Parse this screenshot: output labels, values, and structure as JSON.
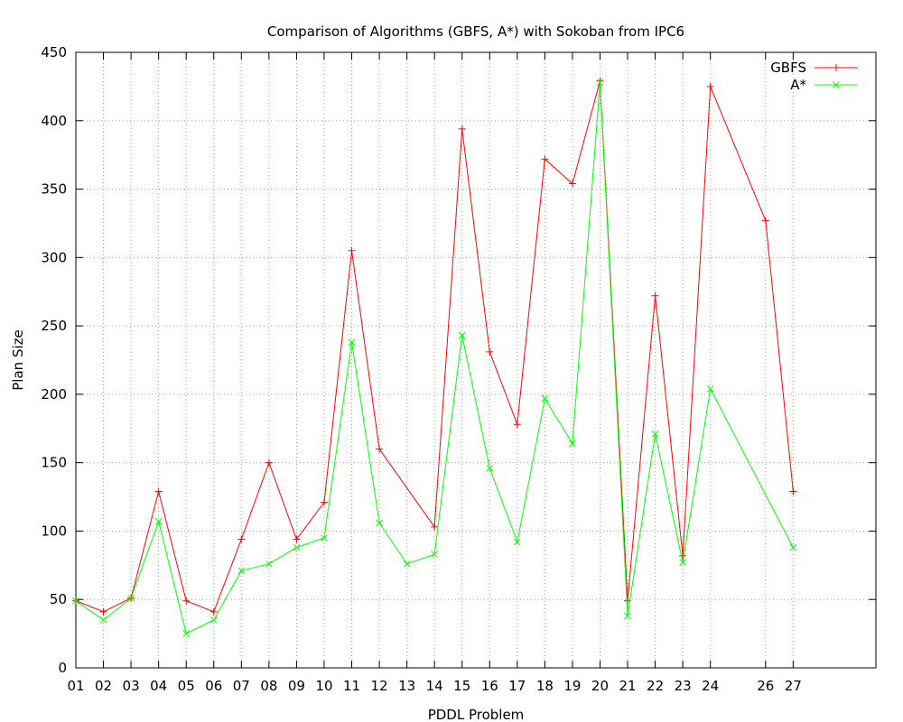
{
  "chart_data": {
    "type": "line",
    "title": "Comparison of Algorithms (GBFS, A*) with Sokoban from IPC6",
    "xlabel": "PDDL Problem",
    "ylabel": "Plan Size",
    "ylim": [
      0,
      450
    ],
    "yticks": [
      0,
      50,
      100,
      150,
      200,
      250,
      300,
      350,
      400,
      450
    ],
    "xlim": [
      1,
      30
    ],
    "xticks": [
      {
        "pos": 1,
        "label": "01"
      },
      {
        "pos": 2,
        "label": "02"
      },
      {
        "pos": 3,
        "label": "03"
      },
      {
        "pos": 4,
        "label": "04"
      },
      {
        "pos": 5,
        "label": "05"
      },
      {
        "pos": 6,
        "label": "06"
      },
      {
        "pos": 7,
        "label": "07"
      },
      {
        "pos": 8,
        "label": "08"
      },
      {
        "pos": 9,
        "label": "09"
      },
      {
        "pos": 10,
        "label": "10"
      },
      {
        "pos": 11,
        "label": "11"
      },
      {
        "pos": 12,
        "label": "12"
      },
      {
        "pos": 13,
        "label": "13"
      },
      {
        "pos": 14,
        "label": "14"
      },
      {
        "pos": 15,
        "label": "15"
      },
      {
        "pos": 16,
        "label": "16"
      },
      {
        "pos": 17,
        "label": "17"
      },
      {
        "pos": 18,
        "label": "18"
      },
      {
        "pos": 19,
        "label": "19"
      },
      {
        "pos": 20,
        "label": "20"
      },
      {
        "pos": 21,
        "label": "21"
      },
      {
        "pos": 22,
        "label": "22"
      },
      {
        "pos": 23,
        "label": "23"
      },
      {
        "pos": 24,
        "label": "24"
      },
      {
        "pos": 26,
        "label": "26"
      },
      {
        "pos": 27,
        "label": "27"
      }
    ],
    "grid": true,
    "legend_position": "top-right",
    "series": [
      {
        "name": "GBFS",
        "color": "#ff0000",
        "marker": "plus",
        "x": [
          1,
          2,
          3,
          4,
          5,
          6,
          7,
          8,
          9,
          10,
          11,
          12,
          14,
          15,
          16,
          17,
          18,
          19,
          20,
          21,
          22,
          23,
          24,
          26,
          27
        ],
        "y": [
          49,
          41,
          51,
          129,
          49,
          41,
          94,
          150,
          94,
          121,
          305,
          160,
          103,
          394,
          231,
          178,
          372,
          354,
          429,
          49,
          272,
          82,
          425,
          327,
          129
        ]
      },
      {
        "name": "A*",
        "color": "#00ff00",
        "marker": "cross",
        "x": [
          1,
          2,
          3,
          4,
          5,
          6,
          7,
          8,
          9,
          10,
          11,
          12,
          13,
          14,
          15,
          16,
          17,
          18,
          19,
          20,
          21,
          22,
          23,
          24,
          27
        ],
        "y": [
          49,
          35,
          51,
          107,
          25,
          35,
          71,
          76,
          88,
          95,
          238,
          106,
          76,
          83,
          243,
          146,
          92,
          197,
          164,
          428,
          38,
          171,
          77,
          204,
          88
        ]
      }
    ]
  }
}
